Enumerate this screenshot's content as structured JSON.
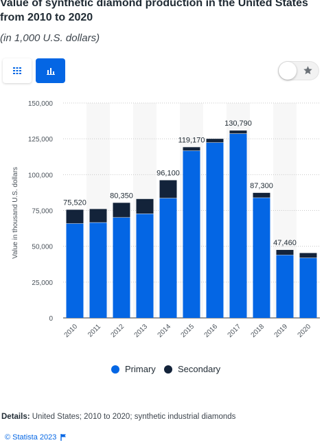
{
  "header": {
    "title": "Value of synthetic diamond production in the United States from 2010 to 2020",
    "subtitle": "(in 1,000 U.S. dollars)"
  },
  "toolbar": {
    "table_icon": "table-grid-icon",
    "chart_icon": "bar-chart-icon",
    "favorite_icon": "star-icon"
  },
  "colors": {
    "primary": "#0466e4",
    "secondary": "#13233a",
    "accent": "#0466e4"
  },
  "chart_data": {
    "type": "bar",
    "stacked": true,
    "categories": [
      "2010",
      "2011",
      "2012",
      "2013",
      "2014",
      "2015",
      "2016",
      "2017",
      "2018",
      "2019",
      "2020"
    ],
    "series": [
      {
        "name": "Primary",
        "color": "#0466e4",
        "values": [
          66000,
          66700,
          70200,
          72800,
          83700,
          116800,
          122500,
          128700,
          84000,
          44000,
          42000
        ]
      },
      {
        "name": "Secondary",
        "color": "#13233a",
        "values": [
          9520,
          9300,
          10150,
          10200,
          12400,
          2370,
          2500,
          2090,
          3300,
          3460,
          3300
        ]
      }
    ],
    "data_labels": [
      "75,520",
      "",
      "80,350",
      "",
      "96,100",
      "119,170",
      "",
      "130,790",
      "87,300",
      "47,460",
      ""
    ],
    "totals": [
      75520,
      76000,
      80350,
      83000,
      96100,
      119170,
      125000,
      130790,
      87300,
      47460,
      45300
    ],
    "ylabel": "Value in thousand U.S. dollars",
    "ylim": [
      0,
      150000
    ],
    "yticks": [
      "0",
      "25,000",
      "50,000",
      "75,000",
      "100,000",
      "125,000",
      "150,000"
    ],
    "ytick_values": [
      0,
      25000,
      50000,
      75000,
      100000,
      125000,
      150000
    ],
    "grid": true,
    "legend_position": "bottom"
  },
  "legend": {
    "primary_label": "Primary",
    "secondary_label": "Secondary"
  },
  "details": {
    "label": "Details:",
    "text": "United States; 2010 to 2020; synthetic industrial diamonds"
  },
  "footer": {
    "copyright": "© Statista 2023"
  }
}
